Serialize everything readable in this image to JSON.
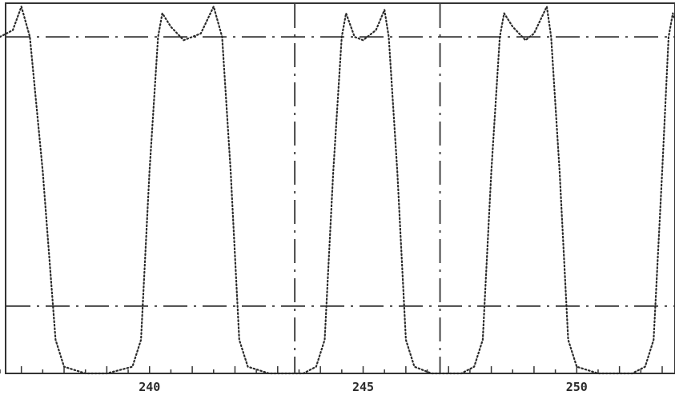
{
  "chart_data": {
    "type": "line",
    "title": "",
    "xlabel": "",
    "ylabel": "",
    "xlim": [
      236.5,
      252.3
    ],
    "ylim": [
      0,
      1.1
    ],
    "grid": true,
    "x_ticks": [
      240,
      245,
      250
    ],
    "x_tick_labels": [
      "240",
      "245",
      "250"
    ],
    "reference_lines": {
      "horizontal": [
        0.2,
        1.0
      ],
      "vertical": [
        243.4,
        246.8
      ]
    },
    "series": [
      {
        "values": [
          [
            236.5,
            1.0
          ],
          [
            236.8,
            1.02
          ],
          [
            237.0,
            1.09
          ],
          [
            237.2,
            1.0
          ],
          [
            237.5,
            0.6
          ],
          [
            237.8,
            0.1
          ],
          [
            238.0,
            0.02
          ],
          [
            238.5,
            0.0
          ],
          [
            239.0,
            0.0
          ],
          [
            239.6,
            0.02
          ],
          [
            239.8,
            0.1
          ],
          [
            240.0,
            0.6
          ],
          [
            240.2,
            1.0
          ],
          [
            240.3,
            1.07
          ],
          [
            240.5,
            1.03
          ],
          [
            240.8,
            0.99
          ],
          [
            241.2,
            1.01
          ],
          [
            241.5,
            1.09
          ],
          [
            241.7,
            1.0
          ],
          [
            241.9,
            0.6
          ],
          [
            242.1,
            0.1
          ],
          [
            242.3,
            0.02
          ],
          [
            242.8,
            0.0
          ],
          [
            243.6,
            0.0
          ],
          [
            243.9,
            0.02
          ],
          [
            244.1,
            0.1
          ],
          [
            244.3,
            0.6
          ],
          [
            244.5,
            1.0
          ],
          [
            244.6,
            1.07
          ],
          [
            244.8,
            1.0
          ],
          [
            245.0,
            0.99
          ],
          [
            245.3,
            1.02
          ],
          [
            245.5,
            1.08
          ],
          [
            245.6,
            1.0
          ],
          [
            245.8,
            0.6
          ],
          [
            246.0,
            0.1
          ],
          [
            246.2,
            0.02
          ],
          [
            246.6,
            0.0
          ],
          [
            247.3,
            0.0
          ],
          [
            247.6,
            0.02
          ],
          [
            247.8,
            0.1
          ],
          [
            248.0,
            0.6
          ],
          [
            248.2,
            1.0
          ],
          [
            248.3,
            1.07
          ],
          [
            248.5,
            1.03
          ],
          [
            248.8,
            0.99
          ],
          [
            249.0,
            1.01
          ],
          [
            249.3,
            1.09
          ],
          [
            249.4,
            1.0
          ],
          [
            249.6,
            0.6
          ],
          [
            249.8,
            0.1
          ],
          [
            250.0,
            0.02
          ],
          [
            250.5,
            0.0
          ],
          [
            251.3,
            0.0
          ],
          [
            251.6,
            0.02
          ],
          [
            251.8,
            0.1
          ],
          [
            252.0,
            0.6
          ],
          [
            252.15,
            1.0
          ],
          [
            252.25,
            1.07
          ],
          [
            252.3,
            1.05
          ]
        ]
      }
    ]
  }
}
